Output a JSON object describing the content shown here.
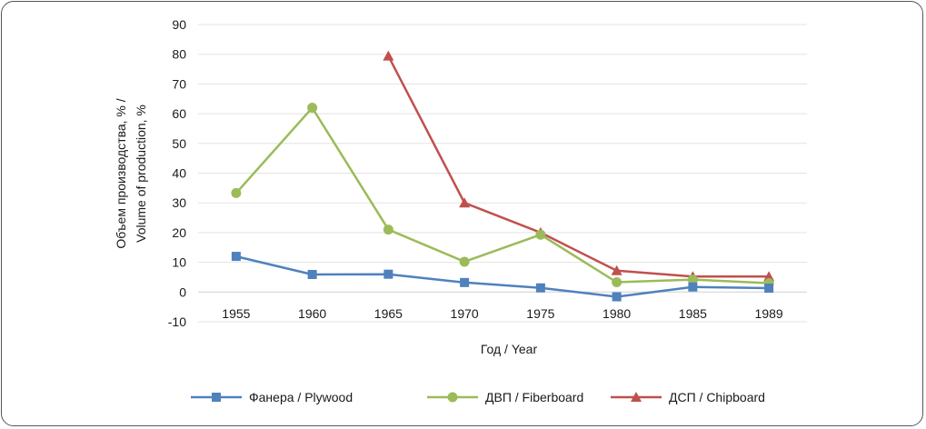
{
  "chart_data": {
    "type": "line",
    "title": "",
    "xlabel": "Год / Year",
    "ylabel_line1": "Объем производства, % /",
    "ylabel_line2": "Volume of production, %",
    "categories": [
      "1955",
      "1960",
      "1965",
      "1970",
      "1975",
      "1980",
      "1985",
      "1989"
    ],
    "ylim": [
      -10,
      90
    ],
    "yticks": [
      -10,
      0,
      10,
      20,
      30,
      40,
      50,
      60,
      70,
      80,
      90
    ],
    "grid": true,
    "legend_position": "bottom",
    "series": [
      {
        "name": "Фанера / Plywood",
        "color": "#4f81bd",
        "marker": "square",
        "values": [
          12,
          5.9,
          6,
          3.2,
          1.4,
          -1.6,
          1.7,
          1.3
        ]
      },
      {
        "name": "ДВП / Fiberboard",
        "color": "#9bbb59",
        "marker": "circle",
        "values": [
          33.3,
          62,
          21,
          10.2,
          19.3,
          3.3,
          4.2,
          3.0
        ]
      },
      {
        "name": "ДСП / Chipboard",
        "color": "#c0504d",
        "marker": "triangle",
        "values": [
          null,
          null,
          79.4,
          30,
          20,
          7.2,
          5.2,
          5.2
        ]
      }
    ]
  }
}
